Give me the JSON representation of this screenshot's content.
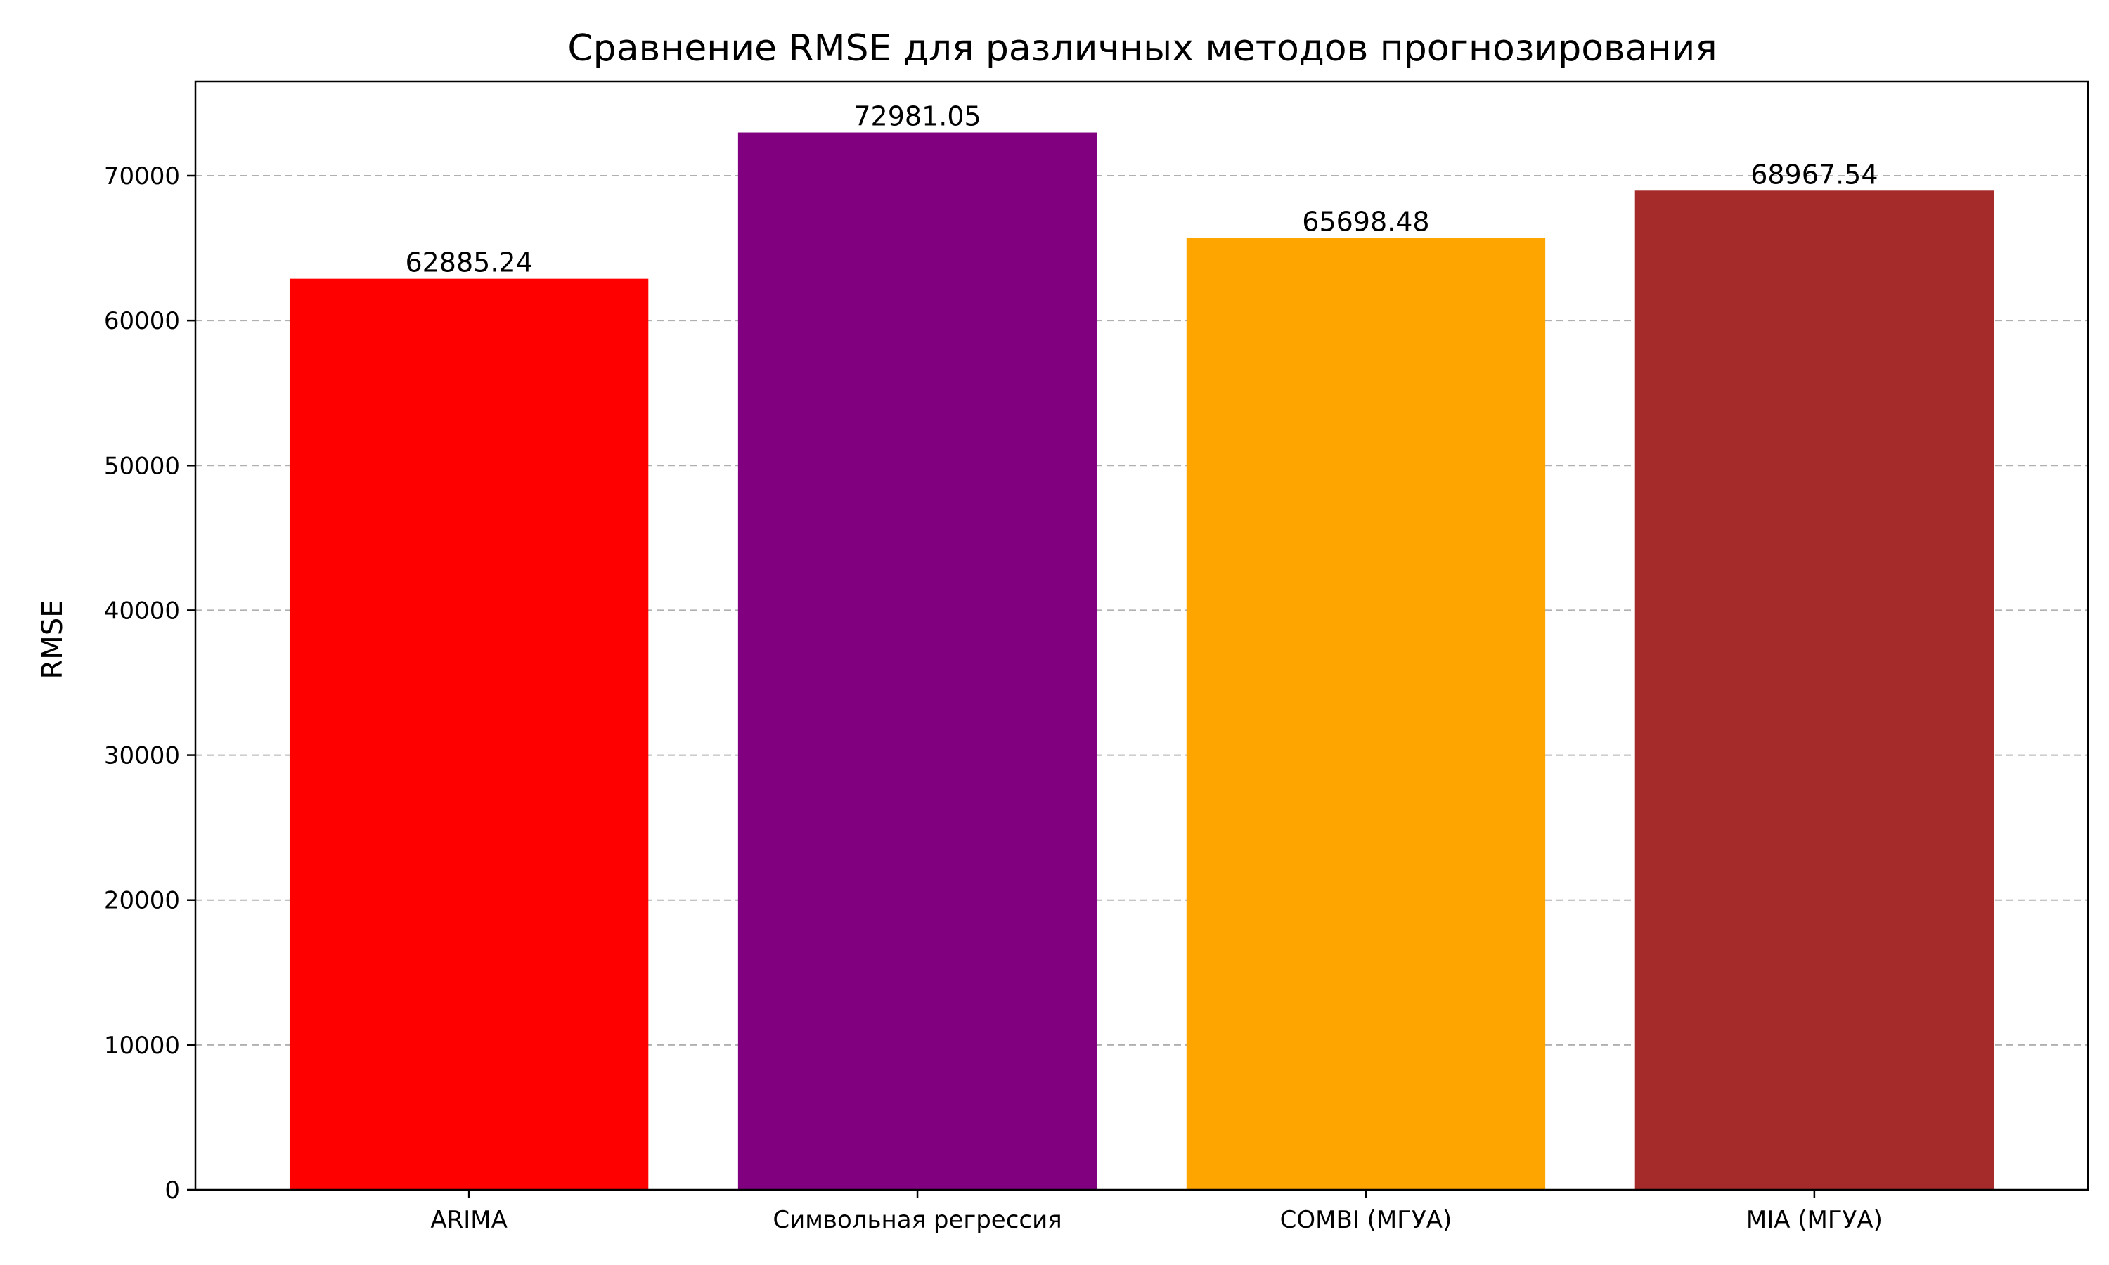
{
  "chart_data": {
    "type": "bar",
    "title": "Сравнение RMSE для различных методов прогнозирования",
    "xlabel": "",
    "ylabel": "RMSE",
    "categories": [
      "ARIMA",
      "Символьная регрессия",
      "COMBI (МГУА)",
      "MIA (МГУА)"
    ],
    "values": [
      62885.24,
      72981.05,
      65698.48,
      68967.54
    ],
    "value_labels": [
      "62885.24",
      "72981.05",
      "65698.48",
      "68967.54"
    ],
    "colors": [
      "#ff0000",
      "#800080",
      "#ffa500",
      "#a52a2a"
    ],
    "ylim": [
      0,
      76500
    ],
    "yticks": [
      0,
      10000,
      20000,
      30000,
      40000,
      50000,
      60000,
      70000
    ],
    "ytick_labels": [
      "0",
      "10000",
      "20000",
      "30000",
      "40000",
      "50000",
      "60000",
      "70000"
    ],
    "grid": "y-dashed",
    "legend": "none"
  }
}
